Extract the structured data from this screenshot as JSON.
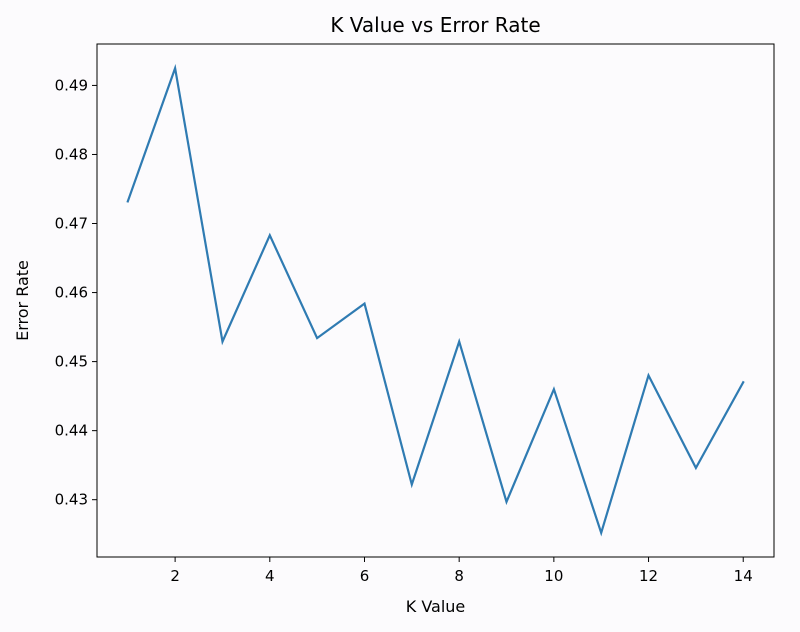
{
  "chart_data": {
    "type": "line",
    "title": "K Value vs Error Rate",
    "xlabel": "K Value",
    "ylabel": "Error Rate",
    "x": [
      1,
      2,
      3,
      4,
      5,
      6,
      7,
      8,
      9,
      10,
      11,
      12,
      13,
      14
    ],
    "series": [
      {
        "values": [
          0.4732,
          0.4925,
          0.4529,
          0.4683,
          0.4534,
          0.4584,
          0.4322,
          0.4529,
          0.4297,
          0.446,
          0.4252,
          0.448,
          0.4346,
          0.447
        ],
        "color": "#2f7bb2"
      }
    ],
    "xticks": [
      2,
      4,
      6,
      8,
      10,
      12,
      14
    ],
    "yticks": [
      0.43,
      0.44,
      0.45,
      0.46,
      0.47,
      0.48,
      0.49
    ],
    "xlim": [
      0.35,
      14.65
    ],
    "ylim": [
      0.4217,
      0.496
    ],
    "grid": false,
    "background": "#fcfbfd"
  }
}
